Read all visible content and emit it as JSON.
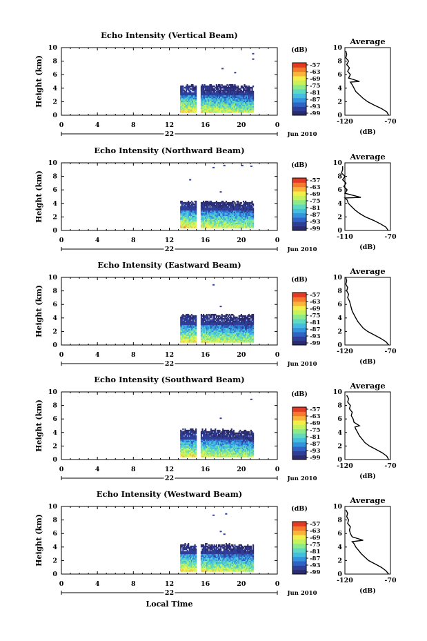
{
  "figure": {
    "xlabel_bottom": "Local Time",
    "colorbar_unit": "(dB)",
    "colorbar_ticks": [
      "-57",
      "-63",
      "-69",
      "-75",
      "-81",
      "-87",
      "-93",
      "-99"
    ],
    "colorbar_colors": [
      "#2b2b6e",
      "#2e3f9a",
      "#2f64c4",
      "#3593dd",
      "#45bde0",
      "#5fd9c0",
      "#8eea86",
      "#c8f25c",
      "#f4ee4a",
      "#f8b53a",
      "#f47a2c",
      "#e33a24"
    ],
    "date_label": "Jun 2010",
    "day_label": "22",
    "x_ticks": [
      "0",
      "4",
      "8",
      "12",
      "16",
      "20",
      "0"
    ],
    "y_ticks": [
      "0",
      "2",
      "4",
      "6",
      "8",
      "10"
    ],
    "ylabel": "Height (km)",
    "profile_title": "Average",
    "profile_xlabel": "(dB)"
  },
  "chart_data": [
    {
      "type": "heatmap",
      "title": "Echo Intensity (Vertical Beam)",
      "xlim": [
        0,
        24
      ],
      "ylim": [
        0,
        10
      ],
      "data_range_hours": [
        13.2,
        21.3
      ],
      "gap_hours": [
        14.9,
        15.4
      ],
      "max_height_km": 4.4,
      "sparse_echoes": [
        [
          17.8,
          6.8
        ],
        [
          19.2,
          6.2
        ],
        [
          21.2,
          8.2
        ],
        [
          21.2,
          9.0
        ]
      ],
      "profile": {
        "type": "line",
        "xlim": [
          -120,
          -70
        ],
        "x_ticks": [
          "-120",
          "-70"
        ],
        "ylim": [
          0,
          10
        ],
        "x": [
          -72,
          -74,
          -80,
          -88,
          -95,
          -100,
          -104,
          -108,
          -110,
          -112,
          -114,
          -104,
          -116,
          -114,
          -117,
          -115,
          -118,
          -116,
          -119,
          -118,
          -119
        ],
        "y": [
          0,
          0.5,
          1,
          1.5,
          2,
          2.5,
          3,
          3.5,
          4,
          4.5,
          4.9,
          5.0,
          5.5,
          6,
          6.5,
          7,
          7.5,
          8,
          8.5,
          9,
          9.5
        ]
      }
    },
    {
      "type": "heatmap",
      "title": "Echo Intensity (Northward Beam)",
      "xlim": [
        0,
        24
      ],
      "ylim": [
        0,
        10
      ],
      "data_range_hours": [
        13.2,
        21.3
      ],
      "gap_hours": [
        14.9,
        15.4
      ],
      "max_height_km": 4.2,
      "sparse_echoes": [
        [
          14.2,
          7.4
        ],
        [
          16.8,
          9.2
        ],
        [
          18.0,
          9.5
        ],
        [
          20.0,
          9.5
        ],
        [
          21.0,
          9.4
        ],
        [
          17.6,
          5.6
        ]
      ],
      "profile": {
        "type": "line",
        "xlim": [
          -110,
          -70
        ],
        "x_ticks": [
          "-110",
          "-70"
        ],
        "ylim": [
          0,
          10
        ],
        "x": [
          -72,
          -74,
          -79,
          -85,
          -92,
          -97,
          -101,
          -104,
          -107,
          -108,
          -110,
          -96,
          -110,
          -108,
          -111,
          -109,
          -112,
          -110,
          -113,
          -112,
          -112
        ],
        "y": [
          0,
          0.5,
          1,
          1.5,
          2,
          2.5,
          3,
          3.5,
          4,
          4.5,
          4.8,
          4.9,
          5.5,
          6,
          6.5,
          7,
          7.5,
          8,
          8.5,
          9,
          9.5
        ]
      }
    },
    {
      "type": "heatmap",
      "title": "Echo Intensity (Eastward Beam)",
      "xlim": [
        0,
        24
      ],
      "ylim": [
        0,
        10
      ],
      "data_range_hours": [
        13.2,
        21.3
      ],
      "gap_hours": [
        14.9,
        15.4
      ],
      "max_height_km": 4.4,
      "sparse_echoes": [
        [
          16.8,
          8.8
        ],
        [
          17.6,
          5.6
        ]
      ],
      "profile": {
        "type": "line",
        "xlim": [
          -120,
          -70
        ],
        "x_ticks": [
          "-120",
          "-70"
        ],
        "ylim": [
          0,
          10
        ],
        "x": [
          -72,
          -75,
          -81,
          -88,
          -95,
          -100,
          -103,
          -106,
          -108,
          -110,
          -112,
          -113,
          -114,
          -115,
          -117,
          -116,
          -118,
          -117,
          -119,
          -118,
          -119
        ],
        "y": [
          0,
          0.5,
          1,
          1.5,
          2,
          2.5,
          3,
          3.5,
          4,
          4.5,
          5,
          5.5,
          6,
          6.5,
          7,
          7.5,
          8,
          8.5,
          9,
          9.5,
          10
        ]
      }
    },
    {
      "type": "heatmap",
      "title": "Echo Intensity (Southward Beam)",
      "xlim": [
        0,
        24
      ],
      "ylim": [
        0,
        10
      ],
      "data_range_hours": [
        13.2,
        21.3
      ],
      "gap_hours": [
        14.9,
        15.4
      ],
      "max_height_km": 4.3,
      "sparse_echoes": [
        [
          21.0,
          8.8
        ],
        [
          17.6,
          6.0
        ]
      ],
      "profile": {
        "type": "line",
        "xlim": [
          -120,
          -70
        ],
        "x_ticks": [
          "-120",
          "-70"
        ],
        "ylim": [
          0,
          10
        ],
        "x": [
          -72,
          -74,
          -79,
          -86,
          -93,
          -98,
          -101,
          -104,
          -106,
          -108,
          -109,
          -104,
          -110,
          -111,
          -113,
          -112,
          -115,
          -114,
          -117,
          -116,
          -118
        ],
        "y": [
          0,
          0.5,
          1,
          1.5,
          2,
          2.5,
          3,
          3.5,
          4,
          4.5,
          4.8,
          5.0,
          5.5,
          6,
          6.5,
          7,
          7.5,
          8,
          8.5,
          9,
          9.5
        ]
      }
    },
    {
      "type": "heatmap",
      "title": "Echo Intensity (Westward Beam)",
      "xlim": [
        0,
        24
      ],
      "ylim": [
        0,
        10
      ],
      "data_range_hours": [
        13.2,
        21.3
      ],
      "gap_hours": [
        14.9,
        15.4
      ],
      "max_height_km": 4.3,
      "sparse_echoes": [
        [
          16.8,
          8.6
        ],
        [
          18.2,
          8.8
        ],
        [
          17.6,
          6.2
        ],
        [
          18.0,
          5.8
        ]
      ],
      "profile": {
        "type": "line",
        "xlim": [
          -120,
          -70
        ],
        "x_ticks": [
          "-120",
          "-70"
        ],
        "ylim": [
          0,
          10
        ],
        "x": [
          -72,
          -75,
          -80,
          -87,
          -94,
          -98,
          -102,
          -105,
          -108,
          -110,
          -112,
          -100,
          -112,
          -114,
          -115,
          -114,
          -117,
          -116,
          -118,
          -117,
          -119
        ],
        "y": [
          0,
          0.5,
          1,
          1.5,
          2,
          2.5,
          3,
          3.5,
          4,
          4.5,
          4.8,
          5.0,
          5.5,
          6,
          6.5,
          7,
          7.5,
          8,
          8.5,
          9,
          9.5
        ]
      }
    }
  ]
}
